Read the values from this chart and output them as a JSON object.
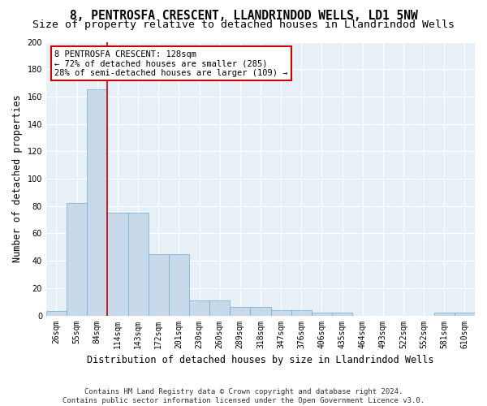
{
  "title": "8, PENTROSFA CRESCENT, LLANDRINDOD WELLS, LD1 5NW",
  "subtitle": "Size of property relative to detached houses in Llandrindod Wells",
  "xlabel": "Distribution of detached houses by size in Llandrindod Wells",
  "ylabel": "Number of detached properties",
  "bin_labels": [
    "26sqm",
    "55sqm",
    "84sqm",
    "114sqm",
    "143sqm",
    "172sqm",
    "201sqm",
    "230sqm",
    "260sqm",
    "289sqm",
    "318sqm",
    "347sqm",
    "376sqm",
    "406sqm",
    "435sqm",
    "464sqm",
    "493sqm",
    "522sqm",
    "552sqm",
    "581sqm",
    "610sqm"
  ],
  "bar_heights": [
    3,
    82,
    165,
    75,
    75,
    45,
    45,
    11,
    11,
    6,
    6,
    4,
    4,
    2,
    2,
    0,
    0,
    0,
    0,
    2,
    2
  ],
  "bar_color": "#c8daea",
  "bar_edge_color": "#6aaed6",
  "background_color": "#e8f0f7",
  "grid_color": "#ffffff",
  "vline_color": "#cc0000",
  "vline_position": 2.5,
  "annotation_text": "8 PENTROSFA CRESCENT: 128sqm\n← 72% of detached houses are smaller (285)\n28% of semi-detached houses are larger (109) →",
  "annotation_box_facecolor": "#ffffff",
  "annotation_box_edgecolor": "#cc0000",
  "ylim": [
    0,
    200
  ],
  "yticks": [
    0,
    20,
    40,
    60,
    80,
    100,
    120,
    140,
    160,
    180,
    200
  ],
  "footnote": "Contains HM Land Registry data © Crown copyright and database right 2024.\nContains public sector information licensed under the Open Government Licence v3.0.",
  "title_fontsize": 10.5,
  "subtitle_fontsize": 9.5,
  "xlabel_fontsize": 8.5,
  "ylabel_fontsize": 8.5,
  "tick_fontsize": 7,
  "annotation_fontsize": 7.5,
  "footnote_fontsize": 6.5,
  "fig_facecolor": "#ffffff"
}
